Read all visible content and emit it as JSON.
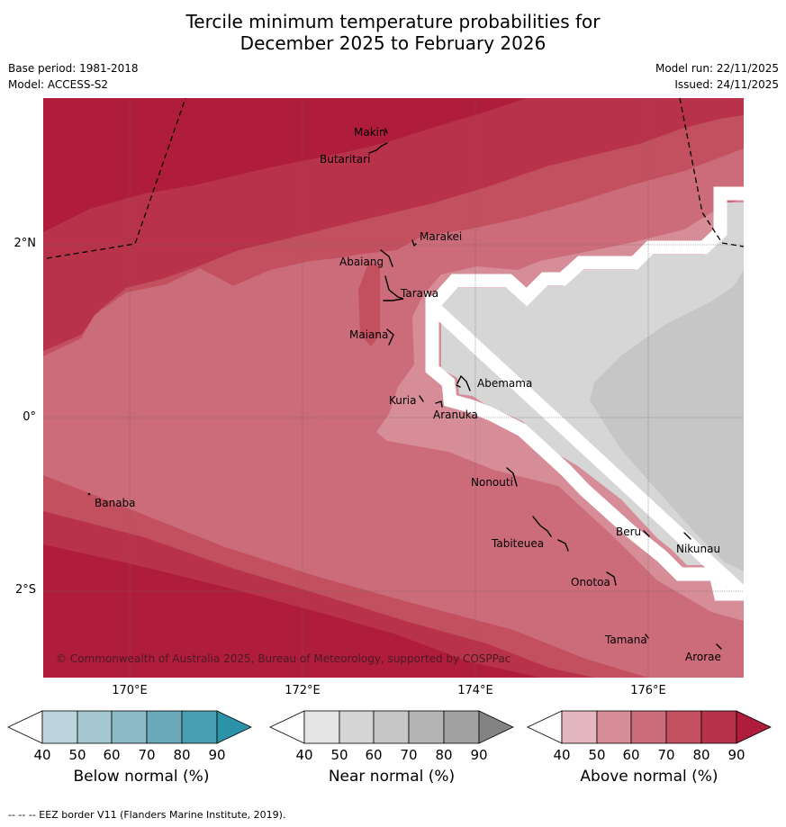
{
  "title_line1": "Tercile minimum temperature probabilities for",
  "title_line2": "December 2025 to February 2026",
  "base_period": "Base period: 1981-2018",
  "model": "Model: ACCESS-S2",
  "model_run": "Model run: 22/11/2025",
  "issued": "Issued: 24/11/2025",
  "copyright": "© Commonwealth of Australia 2025, Bureau of Meteorology, supported by COSPPac",
  "footnote": "--  --  -- EEZ border V11 (Flanders Marine Institute, 2019).",
  "lon_labels": [
    "170°E",
    "172°E",
    "174°E",
    "176°E"
  ],
  "lat_labels": [
    "2°N",
    "0°",
    "2°S"
  ],
  "places": [
    "Makin",
    "Butaritari",
    "Marakei",
    "Abaiang",
    "Tarawa",
    "Maiana",
    "Abemama",
    "Kuria",
    "Aranuka",
    "Nonouti",
    "Tabiteuea",
    "Beru",
    "Nikunau",
    "Onotoa",
    "Banaba",
    "Tamana",
    "Arorae"
  ],
  "colorbars": [
    {
      "title": "Below normal (%)",
      "ticks": [
        "40",
        "50",
        "60",
        "70",
        "80",
        "90"
      ],
      "colors": [
        "#ffffff",
        "#bcd4dc",
        "#a5c7d0",
        "#8cbac6",
        "#6aa9ba",
        "#47a0b2",
        "#2b93a8"
      ]
    },
    {
      "title": "Near normal (%)",
      "ticks": [
        "40",
        "50",
        "60",
        "70",
        "80",
        "90"
      ],
      "colors": [
        "#ffffff",
        "#e5e5e5",
        "#d5d5d5",
        "#c6c6c6",
        "#b4b4b4",
        "#a1a1a1",
        "#838383"
      ]
    },
    {
      "title": "Above normal (%)",
      "ticks": [
        "40",
        "50",
        "60",
        "70",
        "80",
        "90"
      ],
      "colors": [
        "#ffffff",
        "#e4b6be",
        "#d68d98",
        "#cc6b79",
        "#c2505f",
        "#b8324a",
        "#b01c3c"
      ]
    }
  ],
  "palette": {
    "above_90": "#b01c3c",
    "above_80": "#b8324a",
    "above_70": "#c2505f",
    "above_60": "#cc6b79",
    "above_50": "#d68d98",
    "near_50": "#d6d6d6",
    "near_60": "#c6c6c6"
  }
}
